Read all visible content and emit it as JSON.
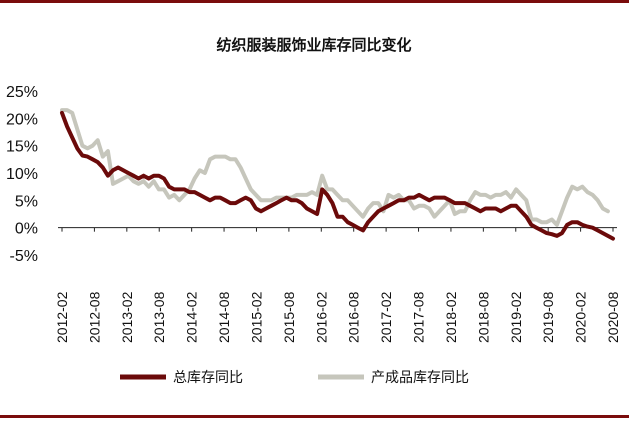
{
  "chart_data": {
    "type": "line",
    "title": "纺织服装服饰业库存同比变化",
    "yticks": [
      "25%",
      "20%",
      "15%",
      "10%",
      "5%",
      "0%",
      "-5%"
    ],
    "ytick_values": [
      25,
      20,
      15,
      10,
      5,
      0,
      -5
    ],
    "ylim": [
      -5,
      25
    ],
    "xticks": [
      "2012-02",
      "2012-08",
      "2013-02",
      "2013-08",
      "2014-02",
      "2014-08",
      "2015-02",
      "2015-08",
      "2016-02",
      "2016-08",
      "2017-02",
      "2017-08",
      "2018-02",
      "2018-08",
      "2019-02",
      "2019-08",
      "2020-02",
      "2020-08"
    ],
    "x_start": "2012-02",
    "x_end": "2020-08",
    "legend_position": "bottom",
    "series": [
      {
        "name": "总库存同比",
        "color": "#6b0a0a",
        "values": [
          21,
          18.5,
          16.5,
          14.5,
          13.2,
          13,
          12.5,
          12,
          11,
          9.5,
          10.5,
          11,
          10.5,
          10,
          9.5,
          9,
          9.5,
          9,
          9.5,
          9.5,
          9,
          7.5,
          7,
          7,
          7,
          6.5,
          6.5,
          6,
          5.5,
          5,
          5.5,
          5.5,
          5,
          4.5,
          4.5,
          5,
          5.5,
          5,
          3.5,
          3,
          3.5,
          4,
          4.5,
          5,
          5.5,
          5,
          5,
          4.5,
          3.5,
          3,
          2.5,
          7,
          6,
          4.5,
          2,
          2,
          1,
          0.5,
          0,
          -0.5,
          1,
          2,
          3,
          3.5,
          4,
          4.5,
          5,
          5,
          5.5,
          5.5,
          6,
          5.5,
          5,
          5.5,
          5.5,
          5.5,
          5,
          4.5,
          4.5,
          4.5,
          4,
          3.5,
          3,
          3.5,
          3.5,
          3.5,
          3,
          3.5,
          4,
          4,
          3,
          2,
          0.5,
          0,
          -0.5,
          -1,
          -1.2,
          -1.5,
          -1,
          0.5,
          1,
          1,
          0.5,
          0.2,
          0,
          -0.5,
          -1,
          -1.5,
          -2
        ]
      },
      {
        "name": "产成品库存同比",
        "color": "#c6c6bc",
        "values": [
          21.5,
          21.5,
          21,
          18,
          15,
          14.5,
          15,
          16,
          13,
          14,
          8,
          8.5,
          9,
          9.5,
          8.5,
          8,
          8.5,
          7.5,
          8.5,
          7,
          7,
          5.5,
          6,
          5,
          6,
          7,
          9,
          10.5,
          10,
          12.5,
          13,
          13,
          13,
          12.5,
          12.5,
          11,
          9,
          7,
          6,
          5,
          5,
          5,
          5.5,
          5.5,
          5.5,
          5.5,
          6,
          6,
          6,
          6.5,
          6,
          9.5,
          7,
          7,
          6,
          5,
          5,
          4,
          3,
          2,
          3.5,
          4.5,
          4.5,
          3,
          6,
          5.5,
          6,
          5,
          5,
          3.5,
          4,
          4,
          3.5,
          2,
          3,
          4,
          5,
          2.5,
          3,
          3,
          5,
          6.5,
          6,
          6,
          5.5,
          6,
          6,
          6.5,
          5.5,
          7,
          6,
          5,
          1.5,
          1.5,
          1,
          1,
          1.5,
          0.5,
          3,
          5.5,
          7.5,
          7,
          7.5,
          6.5,
          6,
          5,
          3.5,
          3
        ]
      }
    ]
  }
}
